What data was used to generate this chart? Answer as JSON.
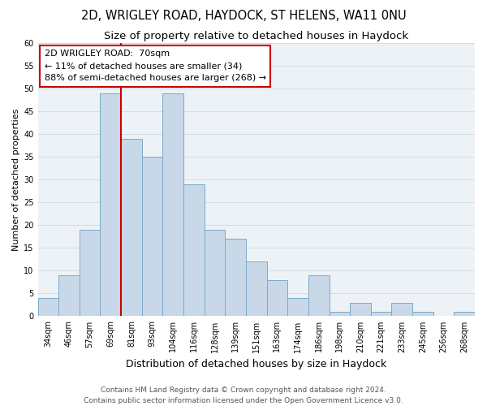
{
  "title": "2D, WRIGLEY ROAD, HAYDOCK, ST HELENS, WA11 0NU",
  "subtitle": "Size of property relative to detached houses in Haydock",
  "xlabel": "Distribution of detached houses by size in Haydock",
  "ylabel": "Number of detached properties",
  "bin_labels": [
    "34sqm",
    "46sqm",
    "57sqm",
    "69sqm",
    "81sqm",
    "93sqm",
    "104sqm",
    "116sqm",
    "128sqm",
    "139sqm",
    "151sqm",
    "163sqm",
    "174sqm",
    "186sqm",
    "198sqm",
    "210sqm",
    "221sqm",
    "233sqm",
    "245sqm",
    "256sqm",
    "268sqm"
  ],
  "bar_values": [
    4,
    9,
    19,
    49,
    39,
    35,
    49,
    29,
    19,
    17,
    12,
    8,
    4,
    9,
    1,
    3,
    1,
    3,
    1,
    0,
    1
  ],
  "bar_color": "#c8d8e8",
  "bar_edge_color": "#7baac8",
  "vline_color": "#cc0000",
  "vline_x": 3.5,
  "annotation_text": "2D WRIGLEY ROAD:  70sqm\n← 11% of detached houses are smaller (34)\n88% of semi-detached houses are larger (268) →",
  "annotation_box_color": "#ffffff",
  "annotation_box_edge_color": "#cc0000",
  "ylim": [
    0,
    60
  ],
  "yticks": [
    0,
    5,
    10,
    15,
    20,
    25,
    30,
    35,
    40,
    45,
    50,
    55,
    60
  ],
  "grid_color": "#d0d8e0",
  "bg_color": "#edf2f7",
  "footer_line1": "Contains HM Land Registry data © Crown copyright and database right 2024.",
  "footer_line2": "Contains public sector information licensed under the Open Government Licence v3.0.",
  "title_fontsize": 10.5,
  "subtitle_fontsize": 9.5,
  "xlabel_fontsize": 9,
  "ylabel_fontsize": 8,
  "tick_fontsize": 7,
  "annotation_fontsize": 8,
  "footer_fontsize": 6.5
}
